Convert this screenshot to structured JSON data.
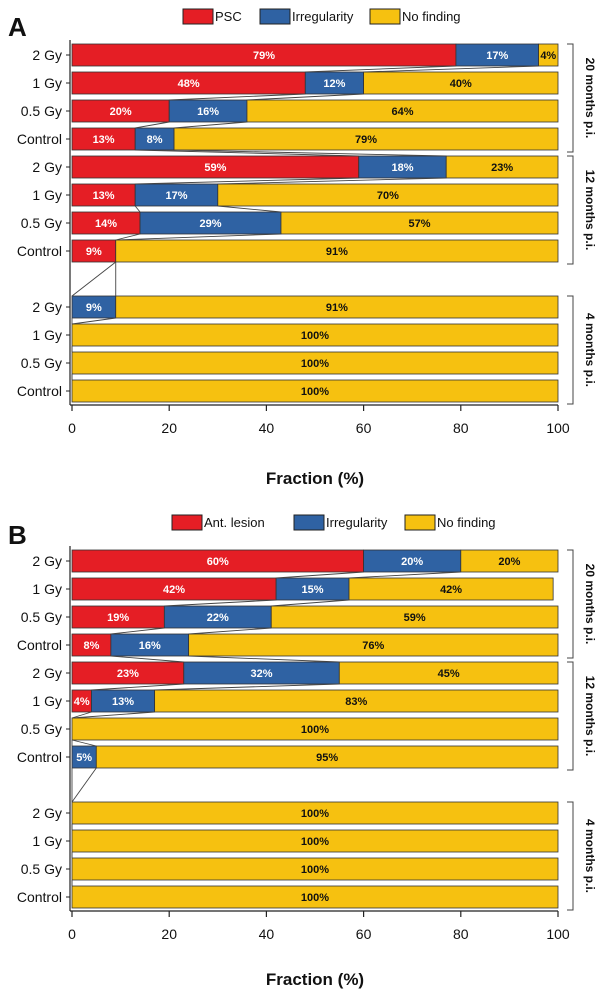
{
  "chart_data": [
    {
      "type": "bar",
      "orientation": "horizontal",
      "stacked": true,
      "panel_label": "A",
      "xlabel": "Fraction (%)",
      "xlim": [
        0,
        100
      ],
      "xticks": [
        "0",
        "20",
        "40",
        "60",
        "80",
        "100"
      ],
      "legend": {
        "placement": "top",
        "entries": [
          {
            "name": "PSC",
            "color": "#e51e25"
          },
          {
            "name": "Irregularity",
            "color": "#2f62a3"
          },
          {
            "name": "No finding",
            "color": "#f6c110"
          }
        ]
      },
      "groups": [
        {
          "label": "20 months p.i.",
          "rows": [
            {
              "category": "2 Gy",
              "values": [
                79,
                17,
                4
              ],
              "labels": [
                "79%",
                "17%",
                "4%"
              ]
            },
            {
              "category": "1 Gy",
              "values": [
                48,
                12,
                40
              ],
              "labels": [
                "48%",
                "12%",
                "40%"
              ]
            },
            {
              "category": "0.5 Gy",
              "values": [
                20,
                16,
                64
              ],
              "labels": [
                "20%",
                "16%",
                "64%"
              ]
            },
            {
              "category": "Control",
              "values": [
                13,
                8,
                79
              ],
              "labels": [
                "13%",
                "8%",
                "79%"
              ]
            }
          ]
        },
        {
          "label": "12 months p.i.",
          "rows": [
            {
              "category": "2 Gy",
              "values": [
                59,
                18,
                23
              ],
              "labels": [
                "59%",
                "18%",
                "23%"
              ]
            },
            {
              "category": "1 Gy",
              "values": [
                13,
                17,
                70
              ],
              "labels": [
                "13%",
                "17%",
                "70%"
              ]
            },
            {
              "category": "0.5 Gy",
              "values": [
                14,
                29,
                57
              ],
              "labels": [
                "14%",
                "29%",
                "57%"
              ]
            },
            {
              "category": "Control",
              "values": [
                9,
                0,
                91
              ],
              "labels": [
                "9%",
                "",
                "91%"
              ]
            }
          ]
        },
        {
          "label": "4 months p.i.",
          "rows": [
            {
              "category": "2 Gy",
              "values": [
                0,
                9,
                91
              ],
              "labels": [
                "",
                "9%",
                "91%"
              ]
            },
            {
              "category": "1 Gy",
              "values": [
                0,
                0,
                100
              ],
              "labels": [
                "",
                "",
                "100%"
              ]
            },
            {
              "category": "0.5 Gy",
              "values": [
                0,
                0,
                100
              ],
              "labels": [
                "",
                "",
                "100%"
              ]
            },
            {
              "category": "Control",
              "values": [
                0,
                0,
                100
              ],
              "labels": [
                "",
                "",
                "100%"
              ]
            }
          ]
        }
      ]
    },
    {
      "type": "bar",
      "orientation": "horizontal",
      "stacked": true,
      "panel_label": "B",
      "xlabel": "Fraction (%)",
      "xlim": [
        0,
        100
      ],
      "xticks": [
        "0",
        "20",
        "40",
        "60",
        "80",
        "100"
      ],
      "legend": {
        "placement": "top",
        "entries": [
          {
            "name": "Ant. lesion",
            "color": "#e51e25"
          },
          {
            "name": "Irregularity",
            "color": "#2f62a3"
          },
          {
            "name": "No finding",
            "color": "#f6c110"
          }
        ]
      },
      "groups": [
        {
          "label": "20 months p.i.",
          "rows": [
            {
              "category": "2 Gy",
              "values": [
                60,
                20,
                20
              ],
              "labels": [
                "60%",
                "20%",
                "20%"
              ]
            },
            {
              "category": "1 Gy",
              "values": [
                42,
                15,
                42
              ],
              "labels": [
                "42%",
                "15%",
                "42%"
              ]
            },
            {
              "category": "0.5 Gy",
              "values": [
                19,
                22,
                59
              ],
              "labels": [
                "19%",
                "22%",
                "59%"
              ]
            },
            {
              "category": "Control",
              "values": [
                8,
                16,
                76
              ],
              "labels": [
                "8%",
                "16%",
                "76%"
              ]
            }
          ]
        },
        {
          "label": "12 months p.i.",
          "rows": [
            {
              "category": "2 Gy",
              "values": [
                23,
                32,
                45
              ],
              "labels": [
                "23%",
                "32%",
                "45%"
              ]
            },
            {
              "category": "1 Gy",
              "values": [
                4,
                13,
                83
              ],
              "labels": [
                "4%",
                "13%",
                "83%"
              ]
            },
            {
              "category": "0.5 Gy",
              "values": [
                0,
                0,
                100
              ],
              "labels": [
                "",
                "",
                "100%"
              ]
            },
            {
              "category": "Control",
              "values": [
                0,
                5,
                95
              ],
              "labels": [
                "",
                "5%",
                "95%"
              ]
            }
          ]
        },
        {
          "label": "4 months p.i.",
          "rows": [
            {
              "category": "2 Gy",
              "values": [
                0,
                0,
                100
              ],
              "labels": [
                "",
                "",
                "100%"
              ]
            },
            {
              "category": "1 Gy",
              "values": [
                0,
                0,
                100
              ],
              "labels": [
                "",
                "",
                "100%"
              ]
            },
            {
              "category": "0.5 Gy",
              "values": [
                0,
                0,
                100
              ],
              "labels": [
                "",
                "",
                "100%"
              ]
            },
            {
              "category": "Control",
              "values": [
                0,
                0,
                100
              ],
              "labels": [
                "",
                "",
                "100%"
              ]
            }
          ]
        }
      ]
    }
  ]
}
